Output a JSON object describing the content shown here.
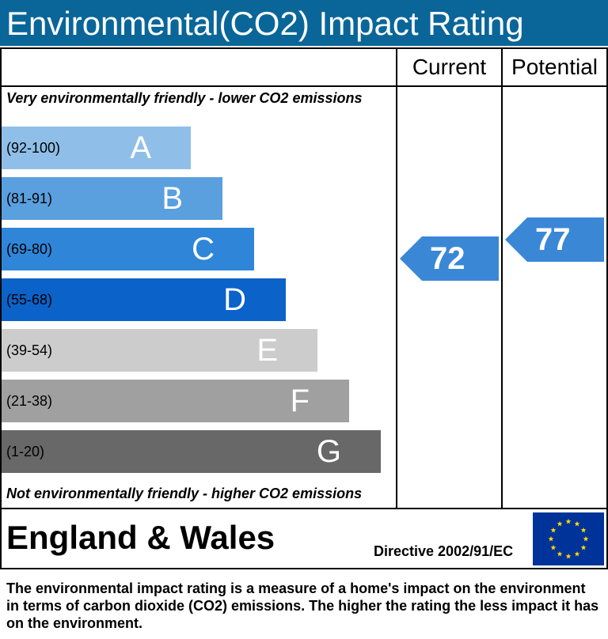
{
  "title": "Environmental(CO2) Impact Rating",
  "columns": {
    "current": "Current",
    "potential": "Potential"
  },
  "notes": {
    "top": "Very environmentally friendly - lower CO2 emissions",
    "bottom": "Not environmentally friendly - higher CO2 emissions"
  },
  "footer": {
    "region": "England & Wales",
    "directive": "Directive 2002/91/EC",
    "description": "The environmental impact rating is a measure of a home's impact on the environment in terms of carbon dioxide (CO2) emissions. The higher the rating the less impact it has on the environment."
  },
  "colors": {
    "title_bar": "#0a6699",
    "pointer": "#3a87d6",
    "eu_flag": "#003399",
    "eu_stars": "#ffdd00"
  },
  "chart_data": {
    "type": "bar",
    "title": "Environmental(CO2) Impact Rating",
    "bands": [
      {
        "letter": "A",
        "range": "(92-100)",
        "min": 92,
        "max": 100,
        "color": "#8fbfe8"
      },
      {
        "letter": "B",
        "range": "(81-91)",
        "min": 81,
        "max": 91,
        "color": "#5a9fde"
      },
      {
        "letter": "C",
        "range": "(69-80)",
        "min": 69,
        "max": 80,
        "color": "#2f86d8"
      },
      {
        "letter": "D",
        "range": "(55-68)",
        "min": 55,
        "max": 68,
        "color": "#0b62c9"
      },
      {
        "letter": "E",
        "range": "(39-54)",
        "min": 39,
        "max": 54,
        "color": "#cccccc"
      },
      {
        "letter": "F",
        "range": "(21-38)",
        "min": 21,
        "max": 38,
        "color": "#a0a0a0"
      },
      {
        "letter": "G",
        "range": "(1-20)",
        "min": 1,
        "max": 20,
        "color": "#686868"
      }
    ],
    "current": {
      "value": 72,
      "band": "C"
    },
    "potential": {
      "value": 77,
      "band": "C"
    }
  }
}
